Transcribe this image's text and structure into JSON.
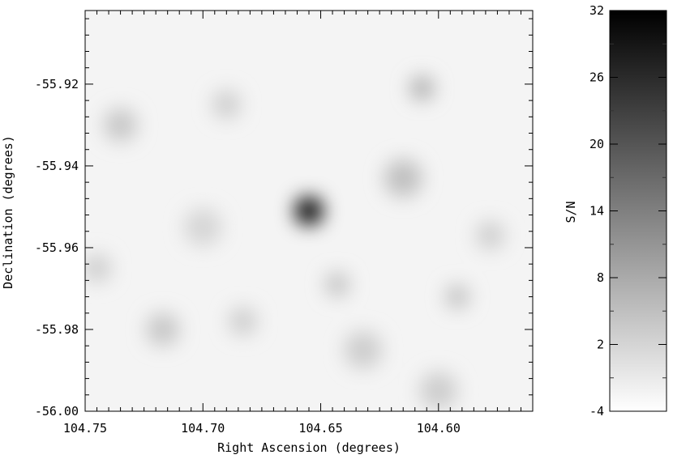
{
  "chart_data": [
    {
      "type": "heatmap",
      "title": "",
      "xlabel": "Right Ascension (degrees)",
      "ylabel": "Declination (degrees)",
      "xlim": [
        104.75,
        104.56
      ],
      "ylim": [
        -56.0,
        -55.902
      ],
      "x_reversed": true,
      "x_ticks": [
        104.75,
        104.7,
        104.65,
        104.6
      ],
      "x_tick_labels": [
        "104.75",
        "104.70",
        "104.65",
        "104.60"
      ],
      "y_ticks": [
        -55.92,
        -55.94,
        -55.96,
        -55.98,
        -56.0
      ],
      "y_tick_labels": [
        "-55.92",
        "-55.94",
        "-55.96",
        "-55.98",
        "-56.00"
      ],
      "grid": false,
      "colormap": "grayscale-inverted",
      "value_range": [
        -4,
        32
      ],
      "sources": [
        {
          "ra": 104.655,
          "dec": -55.951,
          "peak_snr": 32,
          "width_deg": 0.006
        },
        {
          "ra": 104.607,
          "dec": -55.921,
          "peak_snr": 8,
          "width_deg": 0.005
        },
        {
          "ra": 104.615,
          "dec": -55.943,
          "peak_snr": 5,
          "width_deg": 0.008
        },
        {
          "ra": 104.643,
          "dec": -55.969,
          "peak_snr": 5,
          "width_deg": 0.005
        },
        {
          "ra": 104.592,
          "dec": -55.972,
          "peak_snr": 5,
          "width_deg": 0.005
        },
        {
          "ra": 104.735,
          "dec": -55.93,
          "peak_snr": 4,
          "width_deg": 0.007
        },
        {
          "ra": 104.717,
          "dec": -55.98,
          "peak_snr": 4,
          "width_deg": 0.007
        },
        {
          "ra": 104.683,
          "dec": -55.978,
          "peak_snr": 3,
          "width_deg": 0.006
        },
        {
          "ra": 104.632,
          "dec": -55.985,
          "peak_snr": 3,
          "width_deg": 0.008
        },
        {
          "ra": 104.578,
          "dec": -55.957,
          "peak_snr": 3,
          "width_deg": 0.006
        },
        {
          "ra": 104.745,
          "dec": -55.965,
          "peak_snr": 3,
          "width_deg": 0.006
        },
        {
          "ra": 104.69,
          "dec": -55.925,
          "peak_snr": 3,
          "width_deg": 0.006
        },
        {
          "ra": 104.6,
          "dec": -55.995,
          "peak_snr": 3,
          "width_deg": 0.008
        },
        {
          "ra": 104.7,
          "dec": -55.955,
          "peak_snr": 2,
          "width_deg": 0.008
        }
      ]
    },
    {
      "type": "colorbar",
      "label": "S/N",
      "range": [
        -4,
        32
      ],
      "ticks": [
        32,
        26,
        20,
        14,
        8,
        2,
        -4
      ],
      "tick_labels": [
        "32",
        "26",
        "20",
        "14",
        "8",
        "2",
        "-4"
      ]
    }
  ]
}
